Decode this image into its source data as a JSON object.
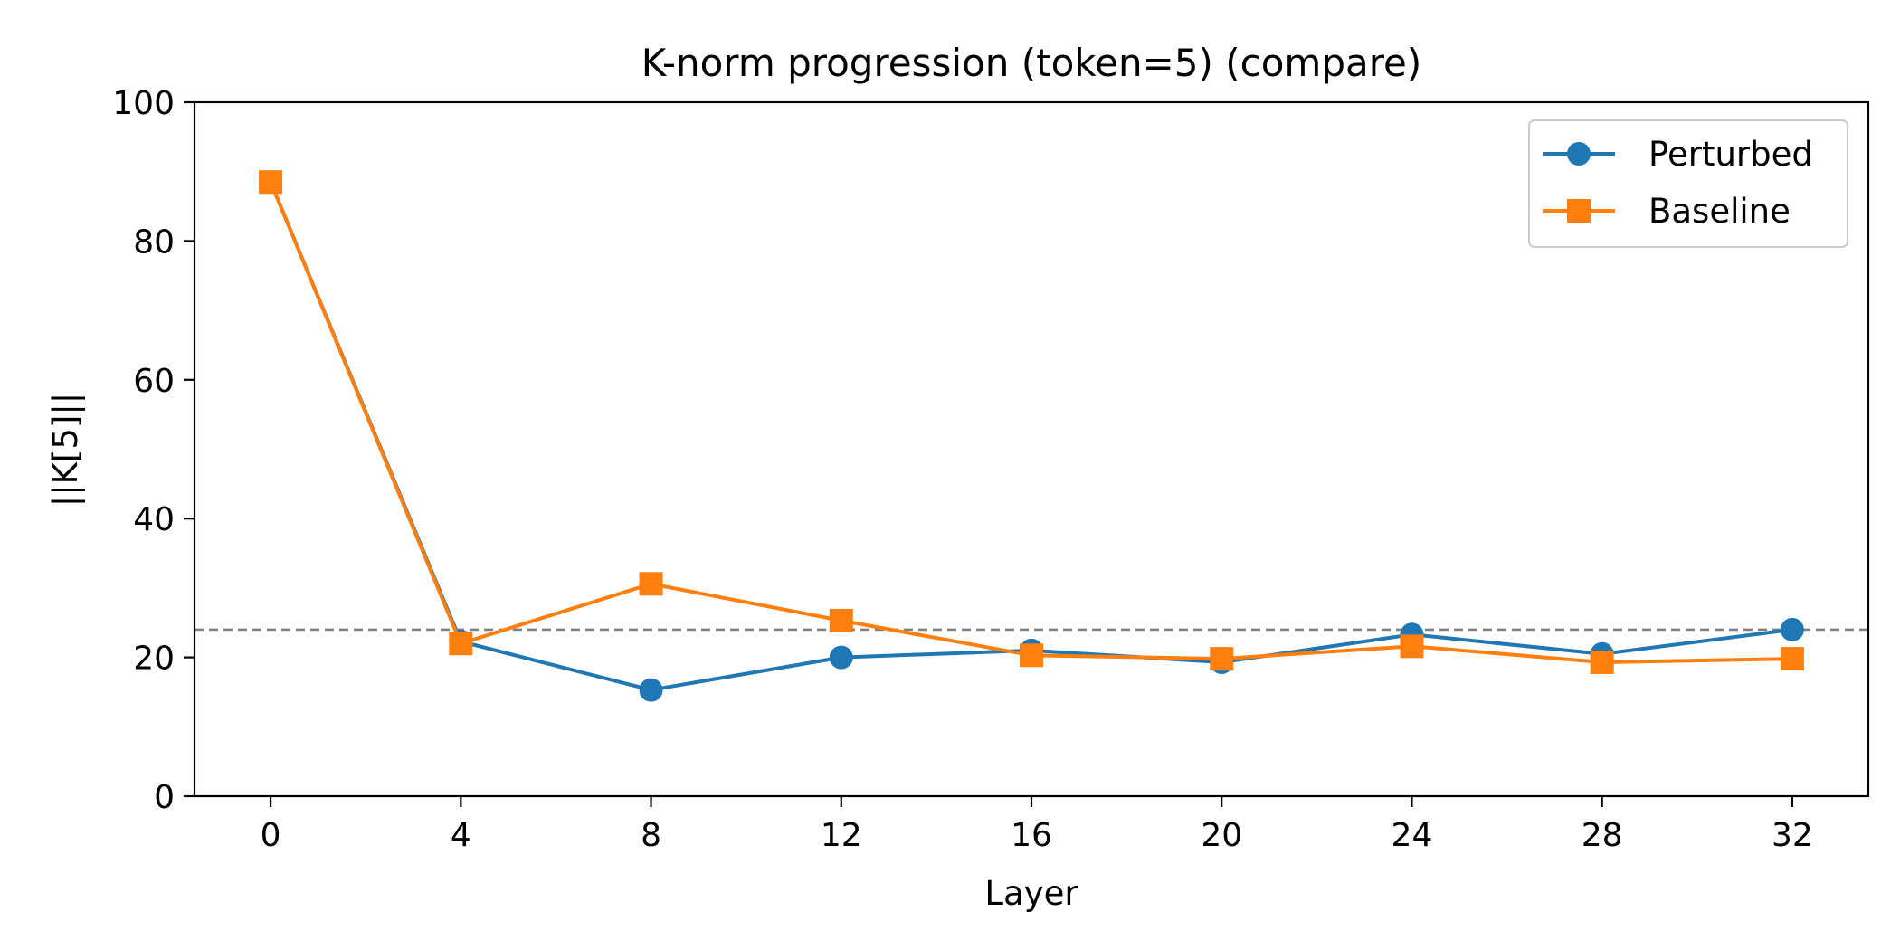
{
  "chart_data": {
    "type": "line",
    "title": "K-norm progression (token=5) (compare)",
    "xlabel": "Layer",
    "ylabel": "||K[5]||",
    "x": [
      0,
      4,
      8,
      12,
      16,
      20,
      24,
      28,
      32
    ],
    "xticks": [
      "0",
      "4",
      "8",
      "12",
      "16",
      "20",
      "24",
      "28",
      "32"
    ],
    "xlim": [
      -1.6,
      33.6
    ],
    "ylim": [
      0,
      100
    ],
    "yticks": [
      "0",
      "20",
      "40",
      "60",
      "80",
      "100"
    ],
    "grid": false,
    "legend_position": "top-right",
    "reference_line": {
      "y": 24,
      "style": "dashed",
      "color": "#808080"
    },
    "series": [
      {
        "name": "Perturbed",
        "color": "#1f77b4",
        "marker": "circle",
        "values": [
          88.5,
          22.3,
          15.3,
          20.0,
          21.0,
          19.3,
          23.3,
          20.5,
          24.0
        ]
      },
      {
        "name": "Baseline",
        "color": "#ff7f0e",
        "marker": "square",
        "values": [
          88.5,
          22.0,
          30.6,
          25.3,
          20.3,
          19.8,
          21.6,
          19.3,
          19.8
        ]
      }
    ]
  }
}
